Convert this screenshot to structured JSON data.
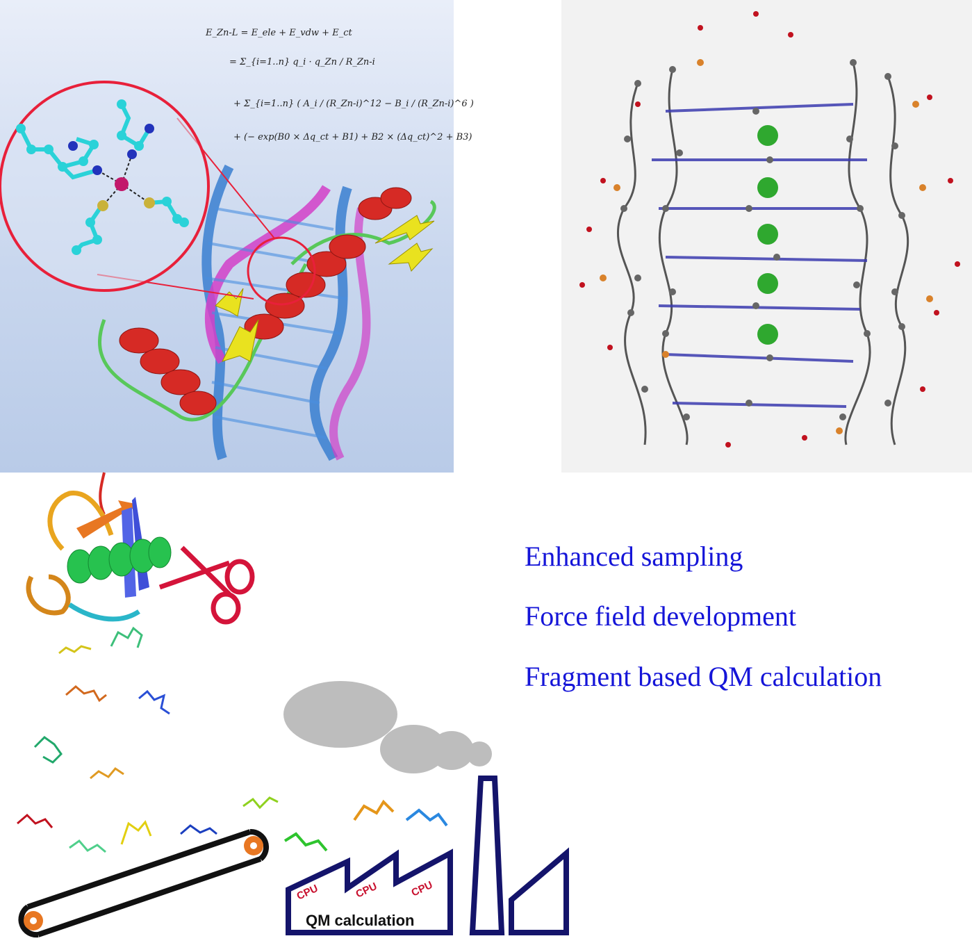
{
  "equation": {
    "line1": "E_Zn-L = E_ele + E_vdw + E_ct",
    "line2": "= Σ_{i=1..n} q_i · q_Zn / R_Zn-i",
    "line3": "+ Σ_{i=1..n} ( A_i / (R_Zn-i)^12 − B_i / (R_Zn-i)^6 )",
    "line4": "+ (− exp(B0 × Δq_ct + B1) + B2 × (Δq_ct)^2 + B3)"
  },
  "topics": [
    "Enhanced sampling",
    "Force field development",
    "Fragment based QM calculation"
  ],
  "factory": {
    "cpu_label": "CPU",
    "qm_label": "QM calculation"
  },
  "colors": {
    "topic_text": "#1515d8",
    "magnifier_ring": "#e8203a",
    "factory_outline": "#14146b",
    "cpu_text": "#c8102e",
    "smoke": "#bdbdbd",
    "gear": "#e87722",
    "dna_blue": "#3a7fd0",
    "dna_magenta": "#d23fc8",
    "helix_red": "#d62a25",
    "sheet_yellow": "#e9e21f",
    "chloride_green": "#2fa82f"
  },
  "icons": [
    "scissors-icon",
    "gear-icon",
    "smoke-cloud-icon",
    "factory-icon",
    "chimney-icon"
  ]
}
